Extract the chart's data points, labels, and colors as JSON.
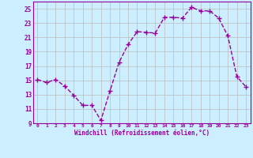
{
  "x": [
    0,
    1,
    2,
    3,
    4,
    5,
    6,
    7,
    8,
    9,
    10,
    11,
    12,
    13,
    14,
    15,
    16,
    17,
    18,
    19,
    20,
    21,
    22,
    23
  ],
  "y": [
    15.1,
    14.7,
    15.1,
    14.2,
    12.9,
    11.5,
    11.5,
    9.4,
    13.5,
    17.5,
    20.0,
    21.8,
    21.7,
    21.6,
    23.8,
    23.8,
    23.7,
    25.2,
    24.7,
    24.7,
    23.7,
    21.2,
    15.5,
    14.1
  ],
  "color": "#990099",
  "bg_color": "#cceeff",
  "grid_color": "#bbbbbb",
  "xlabel": "Windchill (Refroidissement éolien,°C)",
  "ylim": [
    9,
    26
  ],
  "xlim": [
    -0.5,
    23.5
  ],
  "yticks": [
    9,
    11,
    13,
    15,
    17,
    19,
    21,
    23,
    25
  ],
  "xticks": [
    0,
    1,
    2,
    3,
    4,
    5,
    6,
    7,
    8,
    9,
    10,
    11,
    12,
    13,
    14,
    15,
    16,
    17,
    18,
    19,
    20,
    21,
    22,
    23
  ],
  "marker": "+",
  "markersize": 4,
  "linewidth": 1.0
}
